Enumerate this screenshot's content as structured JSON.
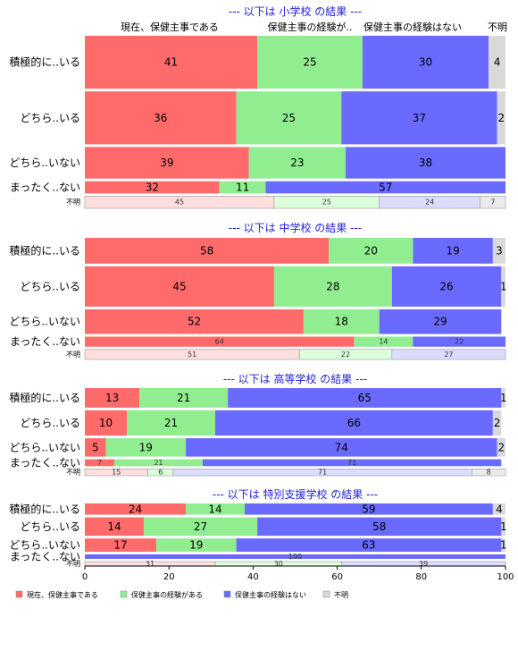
{
  "chart_data": {
    "type": "bar",
    "orientation": "horizontal",
    "stacked": true,
    "xlim": [
      0,
      100
    ],
    "x_ticks": [
      "0",
      "20",
      "40",
      "60",
      "80",
      "100"
    ],
    "column_headers": [
      "現在、保健主事である",
      "保健主事の経験が..",
      "保健主事の経験はない",
      "不明"
    ],
    "legend": {
      "position": "bottom-left",
      "entries": [
        "現在、保健主事である",
        "保健主事の経験がある",
        "保健主事の経験はない",
        "不明"
      ]
    },
    "colors": {
      "current": "#ff6b6b",
      "experienced": "#90ee90",
      "none": "#6a6aff",
      "unknown": "#d9d9d9",
      "unknown_row_current": "#ffdede",
      "unknown_row_experienced": "#dcffdc",
      "unknown_row_none": "#dcdcff",
      "unknown_row_unknown": "#ebebeb",
      "section_title": "#1f1fd6"
    },
    "sections": [
      {
        "title": "--- 以下は 小学校 の結果 ---",
        "show_column_headers": true,
        "rows": [
          {
            "label": "積極的に..いる",
            "values": [
              41,
              25,
              30,
              4
            ],
            "weight": 2.6
          },
          {
            "label": "どちら..いる",
            "values": [
              36,
              25,
              37,
              2
            ],
            "weight": 2.6
          },
          {
            "label": "どちら..いない",
            "values": [
              39,
              23,
              38,
              0
            ],
            "weight": 1.55
          },
          {
            "label": "まったく..ない",
            "values": [
              32,
              11,
              57,
              0
            ],
            "weight": 0.6
          },
          {
            "label": "不明",
            "values": [
              45,
              25,
              24,
              7
            ],
            "weight": 0.6,
            "unknown_row": true
          }
        ]
      },
      {
        "title": "--- 以下は 中学校 の結果 ---",
        "show_column_headers": false,
        "rows": [
          {
            "label": "積極的に..いる",
            "values": [
              58,
              20,
              19,
              3
            ],
            "weight": 1.15
          },
          {
            "label": "どちら..いる",
            "values": [
              45,
              28,
              26,
              1
            ],
            "weight": 1.8
          },
          {
            "label": "どちら..いない",
            "values": [
              52,
              18,
              29,
              0
            ],
            "weight": 1.1
          },
          {
            "label": "まったく..ない",
            "values": [
              64,
              14,
              22,
              0
            ],
            "weight": 0.45
          },
          {
            "label": "不明",
            "values": [
              51,
              22,
              27,
              0
            ],
            "weight": 0.45,
            "unknown_row": true
          }
        ]
      },
      {
        "title": "--- 以下は 高等学校 の結果 ---",
        "show_column_headers": false,
        "rows": [
          {
            "label": "積極的に..いる",
            "values": [
              13,
              21,
              65,
              1
            ],
            "weight": 0.85
          },
          {
            "label": "どちら..いる",
            "values": [
              10,
              21,
              66,
              2
            ],
            "weight": 1.1
          },
          {
            "label": "どちら..いない",
            "values": [
              5,
              19,
              74,
              2
            ],
            "weight": 0.8
          },
          {
            "label": "まったく..ない",
            "values": [
              7,
              21,
              71,
              0
            ],
            "weight": 0.3
          },
          {
            "label": "不明",
            "values": [
              15,
              6,
              71,
              8
            ],
            "weight": 0.3,
            "unknown_row": true
          }
        ]
      },
      {
        "title": "--- 以下は 特別支援学校 の結果 ---",
        "show_column_headers": false,
        "rows": [
          {
            "label": "積極的に..いる",
            "values": [
              24,
              14,
              59,
              4
            ],
            "weight": 0.55
          },
          {
            "label": "どちら..いる",
            "values": [
              14,
              27,
              58,
              1
            ],
            "weight": 0.9
          },
          {
            "label": "どちら..いない",
            "values": [
              17,
              19,
              63,
              1
            ],
            "weight": 0.65
          },
          {
            "label": "まったく..ない",
            "values": [
              0,
              0,
              100,
              0
            ],
            "weight": 0.22
          },
          {
            "label": "不明",
            "values": [
              31,
              30,
              39,
              0
            ],
            "weight": 0.22,
            "unknown_row": true
          }
        ]
      }
    ]
  }
}
